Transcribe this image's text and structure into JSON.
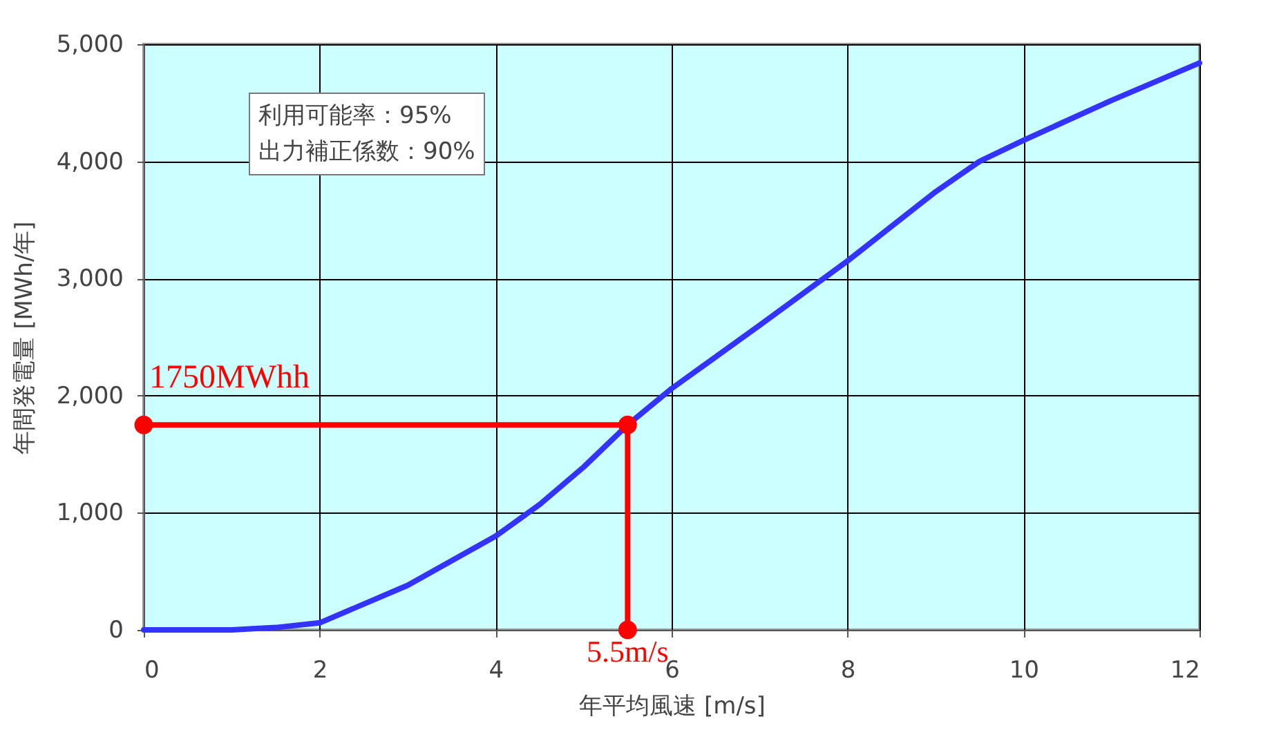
{
  "chart_data": {
    "type": "line",
    "xlabel": "年平均風速 [m/s]",
    "ylabel": "年間発電量 [MWh/年]",
    "xlim": [
      0,
      12
    ],
    "xticks": [
      0,
      2,
      4,
      6,
      8,
      10,
      12
    ],
    "ylim": [
      0,
      5000
    ],
    "yticks": [
      0,
      {
        "value": 1000,
        "label": "1,000"
      },
      {
        "value": 2000,
        "label": "2,000"
      },
      {
        "value": 3000,
        "label": "3,000"
      },
      {
        "value": 4000,
        "label": "4,000"
      },
      {
        "value": 5000,
        "label": "5,000"
      }
    ],
    "grid": true,
    "line_style": "solid",
    "series": [
      {
        "color": "#3333ff",
        "marker": "none",
        "x": [
          0,
          1,
          1.5,
          2,
          3,
          4,
          4.5,
          5,
          5.5,
          6,
          7,
          8,
          9,
          9.5,
          10,
          11,
          12
        ],
        "values": [
          0,
          0,
          20,
          60,
          380,
          800,
          1070,
          1390,
          1750,
          2060,
          2600,
          3150,
          3740,
          4000,
          4180,
          4520,
          4840
        ]
      },
      {
        "color": "#ff0000",
        "marker": "circle",
        "x": [
          0,
          5.5,
          5.5
        ],
        "values": [
          1750,
          1750,
          0
        ]
      }
    ],
    "annotations": [
      "利用可能率：95%\n出力補正係数：90%",
      {
        "text": "1750MWhh",
        "x": 0,
        "y": 1750
      },
      {
        "text": "5.5m/s",
        "x": 5.5,
        "y": 0
      }
    ]
  }
}
